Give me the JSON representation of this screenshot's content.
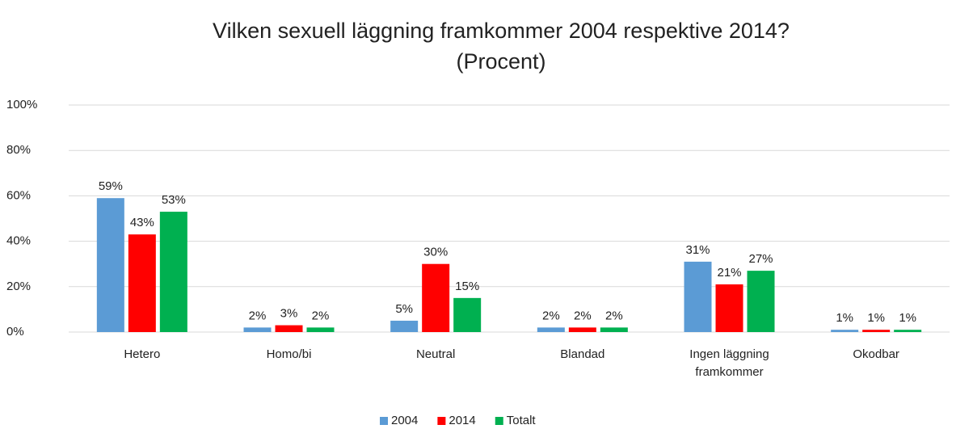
{
  "chart_data": {
    "type": "bar",
    "title": "Vilken sexuell läggning framkommer 2004 respektive 2014?",
    "subtitle": "(Procent)",
    "categories": [
      "Hetero",
      "Homo/bi",
      "Neutral",
      "Blandad",
      "Ingen läggning framkommer",
      "Okodbar"
    ],
    "series": [
      {
        "name": "2004",
        "color": "#5b9bd5",
        "values": [
          59,
          2,
          5,
          2,
          31,
          1
        ],
        "value_labels": [
          "59%",
          "2%",
          "5%",
          "2%",
          "31%",
          "1%"
        ]
      },
      {
        "name": "2014",
        "color": "#ff0000",
        "values": [
          43,
          3,
          30,
          2,
          21,
          1
        ],
        "value_labels": [
          "43%",
          "3%",
          "30%",
          "2%",
          "21%",
          "1%"
        ]
      },
      {
        "name": "Totalt",
        "color": "#00b050",
        "values": [
          53,
          2,
          15,
          2,
          27,
          1
        ],
        "value_labels": [
          "53%",
          "2%",
          "15%",
          "2%",
          "27%",
          "1%"
        ]
      }
    ],
    "ylim": [
      0,
      100
    ],
    "yticks": [
      {
        "value": 0,
        "label": "0%"
      },
      {
        "value": 20,
        "label": "20%"
      },
      {
        "value": 40,
        "label": "40%"
      },
      {
        "value": 60,
        "label": "60%"
      },
      {
        "value": 80,
        "label": "80%"
      },
      {
        "value": 100,
        "label": "100%"
      }
    ],
    "grid": true,
    "legend": "bottom"
  }
}
